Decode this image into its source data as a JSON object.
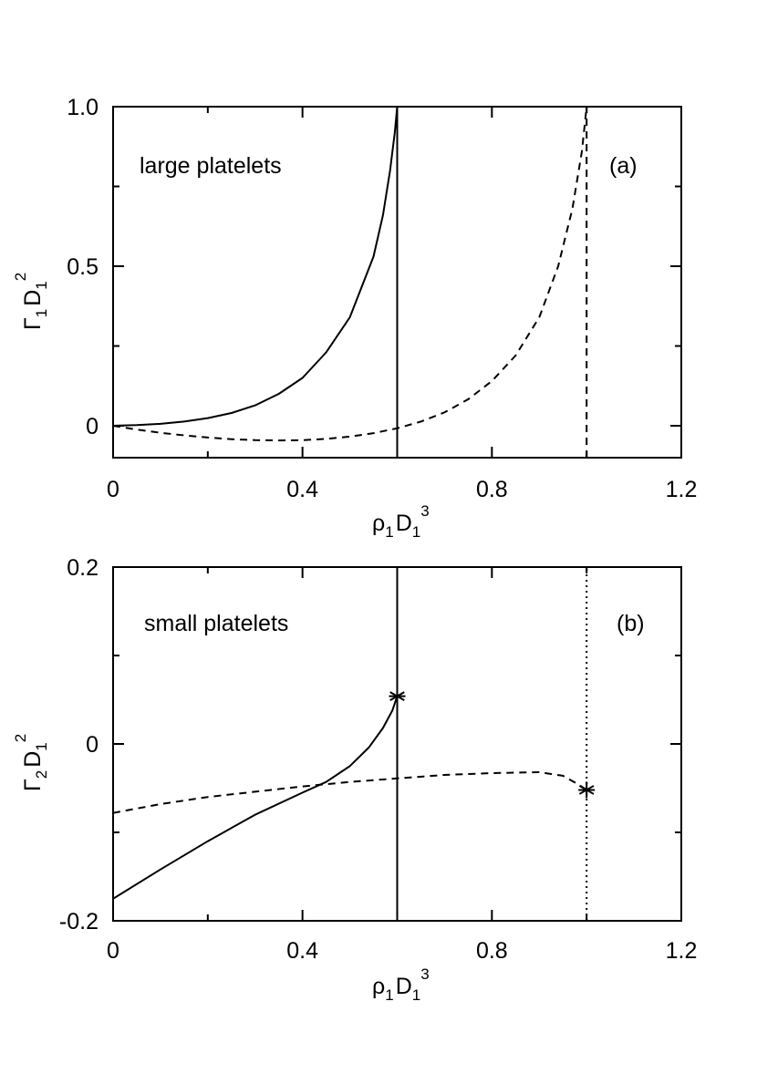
{
  "chart_data": [
    {
      "type": "line",
      "panel": "(a)",
      "annotation": "large platelets",
      "xlabel": {
        "base1": "ρ",
        "sub1": "1",
        "base2": "D",
        "sub2": "1",
        "sup": "3"
      },
      "ylabel": {
        "base1": "Γ",
        "sub1": "1",
        "base2": "D",
        "sub2": "1",
        "sup": "2"
      },
      "xlim": [
        0,
        1.2
      ],
      "ylim": [
        -0.1,
        1.0
      ],
      "xticks": [
        0,
        0.4,
        0.8,
        1.2
      ],
      "xtick_labels": [
        "0",
        "0.4",
        "0.8",
        "1.2"
      ],
      "xminor": [
        0.2,
        0.6,
        1.0
      ],
      "yticks": [
        0,
        0.5,
        1.0
      ],
      "ytick_labels": [
        "0",
        "0.5",
        "1.0"
      ],
      "yminor": [
        0.25,
        0.75
      ],
      "series": [
        {
          "name": "solid",
          "style": "solid",
          "x": [
            0,
            0.05,
            0.1,
            0.15,
            0.2,
            0.25,
            0.3,
            0.35,
            0.4,
            0.45,
            0.5,
            0.55,
            0.57,
            0.585,
            0.595,
            0.6
          ],
          "y": [
            0,
            0.002,
            0.006,
            0.013,
            0.024,
            0.04,
            0.064,
            0.1,
            0.15,
            0.23,
            0.34,
            0.53,
            0.66,
            0.8,
            0.92,
            1.0
          ]
        },
        {
          "name": "solid-vertical",
          "style": "solid",
          "x": [
            0.6,
            0.6
          ],
          "y": [
            -0.1,
            1.0
          ]
        },
        {
          "name": "dashed",
          "style": "dashed",
          "x": [
            0,
            0.05,
            0.1,
            0.15,
            0.2,
            0.25,
            0.3,
            0.35,
            0.4,
            0.45,
            0.5,
            0.55,
            0.6,
            0.65,
            0.7,
            0.75,
            0.8,
            0.85,
            0.9,
            0.94,
            0.97,
            0.99,
            1.0
          ],
          "y": [
            0,
            -0.012,
            -0.022,
            -0.03,
            -0.037,
            -0.042,
            -0.045,
            -0.046,
            -0.045,
            -0.041,
            -0.034,
            -0.023,
            -0.008,
            0.013,
            0.042,
            0.083,
            0.14,
            0.22,
            0.34,
            0.5,
            0.68,
            0.86,
            1.0
          ]
        },
        {
          "name": "dashed-vertical",
          "style": "dashed",
          "x": [
            1.0,
            1.0
          ],
          "y": [
            -0.1,
            1.0
          ]
        }
      ]
    },
    {
      "type": "line",
      "panel": "(b)",
      "annotation": "small platelets",
      "xlabel": {
        "base1": "ρ",
        "sub1": "1",
        "base2": "D",
        "sub2": "1",
        "sup": "3"
      },
      "ylabel": {
        "base1": "Γ",
        "sub1": "2",
        "base2": "D",
        "sub2": "1",
        "sup": "2"
      },
      "xlim": [
        0,
        1.2
      ],
      "ylim": [
        -0.2,
        0.2
      ],
      "xticks": [
        0,
        0.4,
        0.8,
        1.2
      ],
      "xtick_labels": [
        "0",
        "0.4",
        "0.8",
        "1.2"
      ],
      "xminor": [
        0.2,
        0.6,
        1.0
      ],
      "yticks": [
        -0.2,
        0,
        0.2
      ],
      "ytick_labels": [
        "-0.2",
        "0",
        "0.2"
      ],
      "yminor": [
        -0.1,
        0.1
      ],
      "series": [
        {
          "name": "solid",
          "style": "solid",
          "x": [
            0,
            0.1,
            0.2,
            0.3,
            0.4,
            0.45,
            0.5,
            0.54,
            0.57,
            0.59,
            0.6
          ],
          "y": [
            -0.175,
            -0.142,
            -0.11,
            -0.08,
            -0.055,
            -0.043,
            -0.025,
            -0.004,
            0.018,
            0.038,
            0.054
          ]
        },
        {
          "name": "solid-vertical",
          "style": "solid",
          "x": [
            0.6,
            0.6
          ],
          "y": [
            -0.2,
            0.2
          ]
        },
        {
          "name": "dashed",
          "style": "dashed",
          "x": [
            0,
            0.1,
            0.2,
            0.3,
            0.4,
            0.5,
            0.6,
            0.7,
            0.8,
            0.9,
            0.95,
            0.98,
            1.0
          ],
          "y": [
            -0.078,
            -0.068,
            -0.06,
            -0.054,
            -0.048,
            -0.043,
            -0.039,
            -0.035,
            -0.033,
            -0.032,
            -0.036,
            -0.045,
            -0.052
          ]
        },
        {
          "name": "dotted-vertical",
          "style": "dotted",
          "x": [
            1.0,
            1.0
          ],
          "y": [
            -0.2,
            0.2
          ]
        }
      ],
      "markers": [
        {
          "name": "star-solid-end",
          "symbol": "*",
          "x": 0.6,
          "y": 0.054
        },
        {
          "name": "star-dashed-end",
          "symbol": "*",
          "x": 1.0,
          "y": -0.052
        }
      ]
    }
  ]
}
